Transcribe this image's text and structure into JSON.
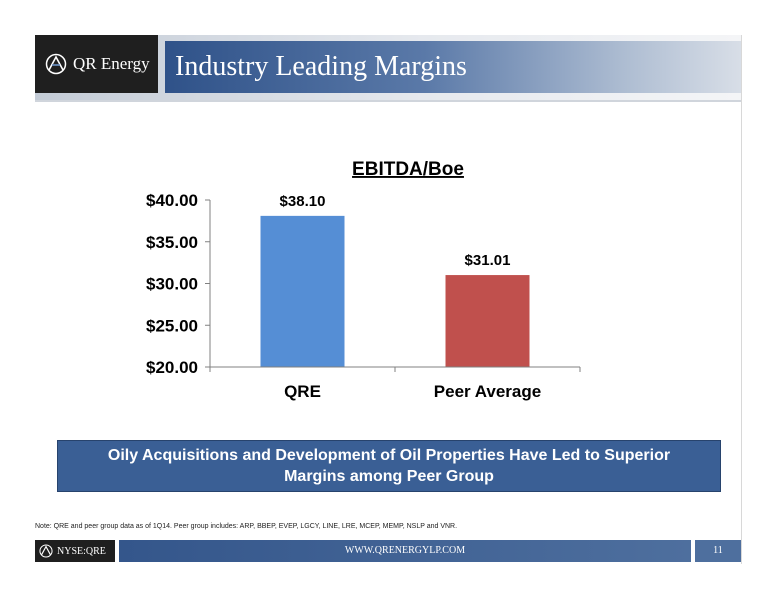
{
  "header": {
    "logo_text": "QR Energy",
    "title": "Industry Leading Margins"
  },
  "callout": {
    "text": "Oily Acquisitions and Development of Oil Properties Have Led to Superior Margins among Peer Group"
  },
  "note": "Note: QRE and peer group data as of 1Q14.  Peer group includes: ARP, BBEP, EVEP, LGCY, LINE, LRE, MCEP, MEMP, NSLP and VNR.",
  "footer": {
    "ticker": "NYSE:QRE",
    "website": "WWW.QRENERGYLP.COM",
    "page": "11"
  },
  "colors": {
    "qre_bar": "#558ed5",
    "peer_bar": "#c0504d",
    "brand_blue": "#2f5289"
  },
  "chart_data": {
    "type": "bar",
    "title": "EBITDA/Boe",
    "categories": [
      "QRE",
      "Peer Average"
    ],
    "values": [
      38.1,
      31.01
    ],
    "data_labels": [
      "$38.10",
      "$31.01"
    ],
    "yticks": [
      "$20.00",
      "$25.00",
      "$30.00",
      "$35.00",
      "$40.00"
    ],
    "ylim": [
      20,
      40
    ],
    "grid": false,
    "legend": "none"
  }
}
